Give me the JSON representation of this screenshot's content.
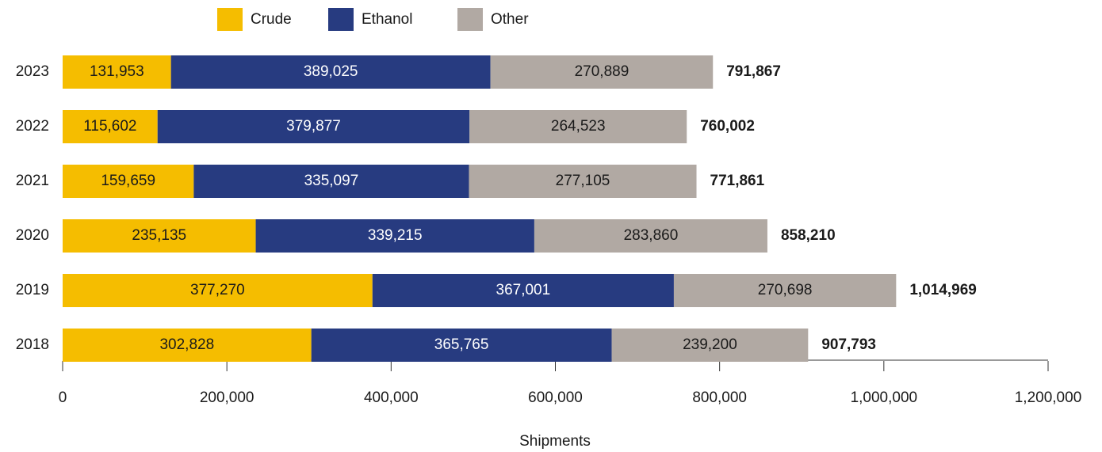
{
  "chart_data": {
    "type": "stacked-barh",
    "categories": [
      "2023",
      "2022",
      "2021",
      "2020",
      "2019",
      "2018"
    ],
    "series": [
      {
        "name": "Crude",
        "color": "#f5bd00",
        "label_color": "#1a1a1a",
        "values": [
          131953,
          115602,
          159659,
          235135,
          377270,
          302828
        ],
        "value_labels": [
          "131,953",
          "115,602",
          "159,659",
          "235,135",
          "377,270",
          "302,828"
        ]
      },
      {
        "name": "Ethanol",
        "color": "#273b80",
        "label_color": "#ffffff",
        "values": [
          389025,
          379877,
          335097,
          339215,
          367001,
          365765
        ],
        "value_labels": [
          "389,025",
          "379,877",
          "335,097",
          "339,215",
          "367,001",
          "365,765"
        ]
      },
      {
        "name": "Other",
        "color": "#b1a9a3",
        "label_color": "#1a1a1a",
        "values": [
          270889,
          264523,
          277105,
          283860,
          270698,
          239200
        ],
        "value_labels": [
          "270,889",
          "264,523",
          "277,105",
          "283,860",
          "270,698",
          "239,200"
        ]
      }
    ],
    "totals": [
      791867,
      760002,
      771861,
      858210,
      1014969,
      907793
    ],
    "total_labels": [
      "791,867",
      "760,002",
      "771,861",
      "858,210",
      "1,014,969",
      "907,793"
    ],
    "xlabel": "Shipments",
    "xlim": [
      0,
      1200000
    ],
    "xticks": [
      0,
      {
        "value": 200000,
        "label": "200,000"
      },
      {
        "value": 400000,
        "label": "400,000"
      },
      {
        "value": 600000,
        "label": "600,000"
      },
      {
        "value": 800000,
        "label": "800,000"
      },
      {
        "value": 1000000,
        "label": "1,000,000"
      },
      {
        "value": 1200000,
        "label": "1,200,000"
      }
    ],
    "legend": "top"
  }
}
